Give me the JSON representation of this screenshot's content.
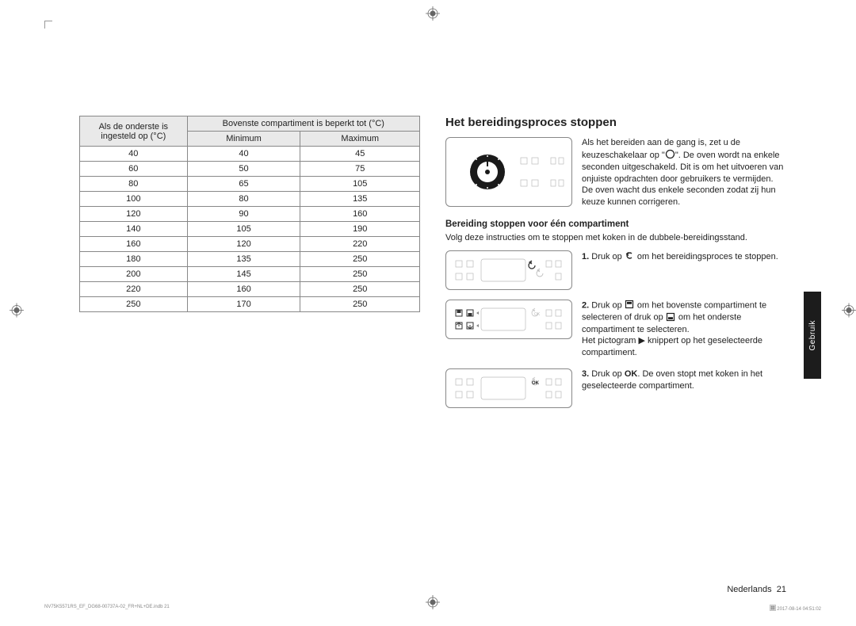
{
  "table": {
    "header_left_l1": "Als de onderste is",
    "header_left_l2": "ingesteld op (°C)",
    "header_top": "Bovenste compartiment is beperkt tot (°C)",
    "header_min": "Minimum",
    "header_max": "Maximum",
    "rows": [
      {
        "c0": "40",
        "c1": "40",
        "c2": "45"
      },
      {
        "c0": "60",
        "c1": "50",
        "c2": "75"
      },
      {
        "c0": "80",
        "c1": "65",
        "c2": "105"
      },
      {
        "c0": "100",
        "c1": "80",
        "c2": "135"
      },
      {
        "c0": "120",
        "c1": "90",
        "c2": "160"
      },
      {
        "c0": "140",
        "c1": "105",
        "c2": "190"
      },
      {
        "c0": "160",
        "c1": "120",
        "c2": "220"
      },
      {
        "c0": "180",
        "c1": "135",
        "c2": "250"
      },
      {
        "c0": "200",
        "c1": "145",
        "c2": "250"
      },
      {
        "c0": "220",
        "c1": "160",
        "c2": "250"
      },
      {
        "c0": "250",
        "c1": "170",
        "c2": "250"
      }
    ]
  },
  "right": {
    "heading": "Het bereidingsproces stoppen",
    "intro_a": "Als het bereiden aan de gang is, zet u de keuzeschakelaar op \"",
    "intro_b": "\". De oven wordt na enkele seconden uitgeschakeld. Dit is om het uitvoeren van onjuiste opdrachten door gebruikers te vermijden. De oven wacht dus enkele seconden zodat zij hun keuze kunnen corrigeren.",
    "subheading": "Bereiding stoppen voor één compartiment",
    "subintro": "Volg deze instructies om te stoppen met koken in de dubbele-bereidingsstand.",
    "step1_n": "1.",
    "step1_a": " Druk op ",
    "step1_b": " om het bereidingsproces te stoppen.",
    "step2_n": "2.",
    "step2_a": " Druk op ",
    "step2_b": " om het bovenste compartiment te selecteren of druk op ",
    "step2_c": " om het onderste compartiment te selecteren.",
    "step2_d": "Het pictogram ▶ knippert op het geselecteerde compartiment.",
    "step3_n": "3.",
    "step3_a": " Druk op ",
    "step3_ok": "OK",
    "step3_b": ". De oven stopt met koken in het geselecteerde compartiment."
  },
  "sidetab": "Gebruik",
  "footer": {
    "lang": "Nederlands",
    "pagenum": "21",
    "file": "NV75K5571RS_EF_DG68-00737A-02_FR+NL+DE.indb   21",
    "datetime": "2017-08-14   04:51:02"
  },
  "colors": {
    "table_header_bg": "#e9e9e9",
    "border": "#888888",
    "sidetab_bg": "#1c1c1c",
    "text": "#222222"
  }
}
